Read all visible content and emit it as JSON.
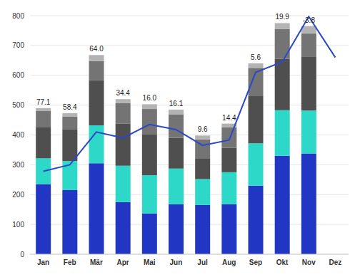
{
  "chart_data": {
    "type": "bar",
    "stacked": true,
    "grid": true,
    "categories": [
      "Jan",
      "Feb",
      "Mär",
      "Apr",
      "Mai",
      "Jun",
      "Jul",
      "Aug",
      "Sep",
      "Okt",
      "Nov",
      "Dez"
    ],
    "ylim": [
      0,
      800
    ],
    "yticks": [
      0,
      100,
      200,
      300,
      400,
      500,
      600,
      700,
      800
    ],
    "series": [
      {
        "type": "bar",
        "color": "#2236c4",
        "values": [
          235,
          215,
          305,
          175,
          137,
          168,
          165,
          168,
          230,
          330,
          338,
          null
        ]
      },
      {
        "type": "bar",
        "color": "#2ed8c8",
        "values": [
          87,
          97,
          127,
          122,
          128,
          119,
          87,
          107,
          142,
          153,
          144,
          null
        ]
      },
      {
        "type": "bar",
        "color": "#4f4f4f",
        "values": [
          103,
          108,
          151,
          141,
          138,
          103,
          68,
          82,
          158,
          172,
          181,
          null
        ]
      },
      {
        "type": "bar",
        "color": "#747474",
        "values": [
          55,
          42,
          65,
          69,
          84,
          78,
          65,
          68,
          95,
          100,
          77,
          null
        ]
      },
      {
        "type": "bar",
        "color": "#b3b3b3",
        "values": [
          10,
          11,
          20,
          13,
          16,
          17,
          13,
          13,
          15,
          20,
          25,
          null
        ]
      },
      {
        "type": "line",
        "color": "#2b48c9",
        "values": [
          278,
          300,
          410,
          390,
          435,
          418,
          365,
          383,
          610,
          645,
          797,
          660
        ]
      }
    ],
    "annotations": [
      "77.1",
      "58.4",
      "64.0",
      "34.4",
      "16.0",
      "16.1",
      "9.6",
      "14.4",
      "5.6",
      "19.9",
      "-3.8",
      null
    ]
  }
}
